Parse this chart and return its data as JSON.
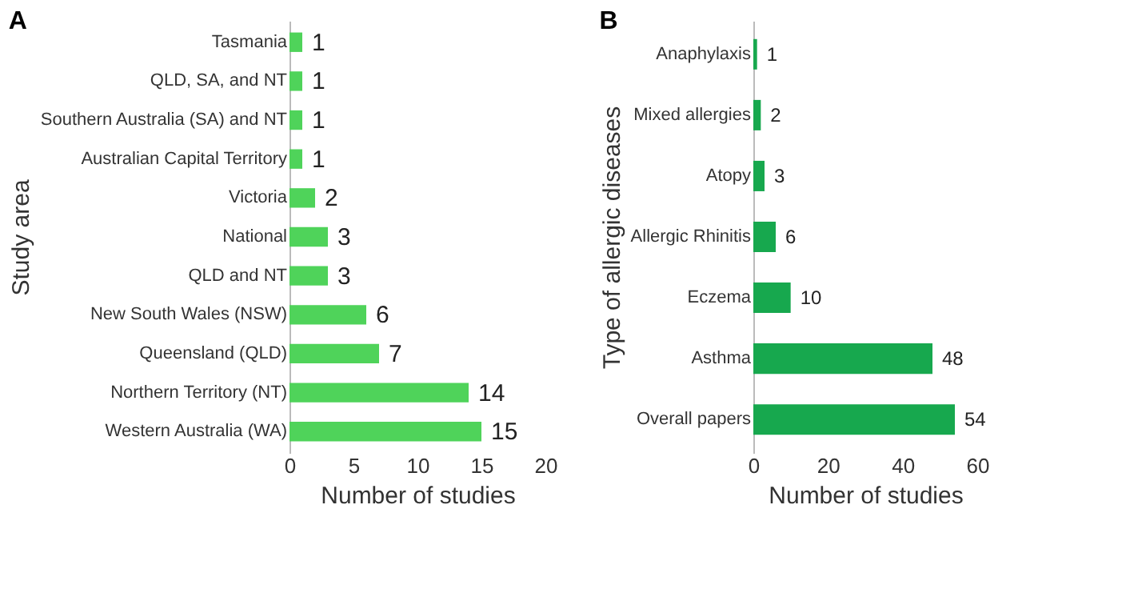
{
  "chart_data": [
    {
      "type": "bar",
      "orientation": "horizontal",
      "title": "A",
      "xlabel": "Number of studies",
      "ylabel": "Study area",
      "categories": [
        "Tasmania",
        "QLD, SA, and NT",
        "Southern Australia (SA) and NT",
        "Australian Capital Territory",
        "Victoria",
        "National",
        "QLD and NT",
        "New South Wales (NSW)",
        "Queensland (QLD)",
        "Northern Territory (NT)",
        "Western Australia (WA)"
      ],
      "values": [
        1,
        1,
        1,
        1,
        2,
        3,
        3,
        6,
        7,
        14,
        15
      ],
      "color": "#4fd35a",
      "xlim": [
        0,
        20
      ],
      "xticks": [
        0,
        5,
        10,
        15,
        20
      ],
      "data_labels": true,
      "grid": false
    },
    {
      "type": "bar",
      "orientation": "horizontal",
      "title": "B",
      "xlabel": "Number of studies",
      "ylabel": "Type of allergic diseases",
      "categories": [
        "Anaphylaxis",
        "Mixed allergies",
        "Atopy",
        "Allergic Rhinitis",
        "Eczema",
        "Asthma",
        "Overall papers"
      ],
      "values": [
        1,
        2,
        3,
        6,
        10,
        48,
        54
      ],
      "color": "#17a84e",
      "xlim": [
        0,
        60
      ],
      "xticks": [
        0,
        20,
        40,
        60
      ],
      "data_labels": true,
      "grid": false
    }
  ]
}
